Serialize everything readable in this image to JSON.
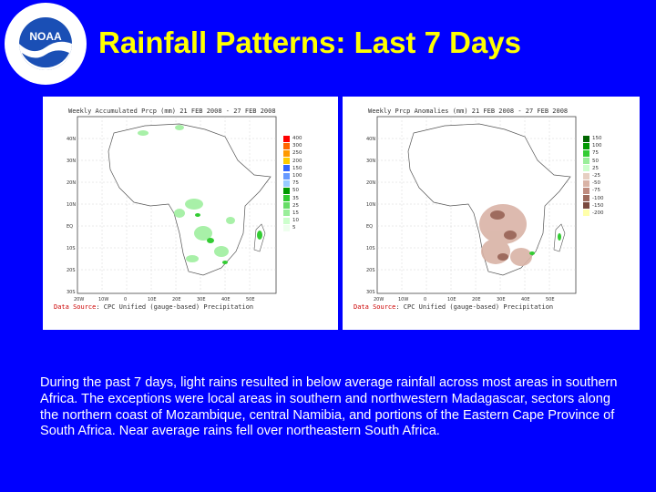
{
  "slide": {
    "title": "Rainfall Patterns: Last 7 Days",
    "description": "During the past 7 days, light rains resulted in below average rainfall across most areas in southern Africa.  The exceptions were local areas in southern and northwestern Madagascar, sectors along the northern coast of Mozambique, central Namibia, and portions of the Eastern Cape Province of South Africa.  Near average rains fell over northeastern South Africa.",
    "colors": {
      "background": "#0000ff",
      "title": "#ffff00",
      "text": "#ffffff"
    }
  },
  "logo": {
    "icon": "noaa-logo",
    "center_text": "NOAA",
    "ring_text": "NATIONAL OCEANIC AND ATMOSPHERIC ADMINISTRATION · U.S. DEPARTMENT OF COMMERCE"
  },
  "maps": [
    {
      "title": "Weekly Accumulated Prcp (mm)  21 FEB 2008 - 27 FEB 2008",
      "footer_source": "Data Source",
      "footer_text": ": CPC Unified (gauge-based) Precipitation",
      "legend": [
        {
          "label": "400",
          "color": "#ff0000"
        },
        {
          "label": "300",
          "color": "#ff6600"
        },
        {
          "label": "250",
          "color": "#ff9900"
        },
        {
          "label": "200",
          "color": "#ffcc00"
        },
        {
          "label": "150",
          "color": "#3366ff"
        },
        {
          "label": "100",
          "color": "#6699ff"
        },
        {
          "label": "75",
          "color": "#99ccff"
        },
        {
          "label": "50",
          "color": "#009900"
        },
        {
          "label": "35",
          "color": "#33cc33"
        },
        {
          "label": "25",
          "color": "#66dd66"
        },
        {
          "label": "15",
          "color": "#99ee99"
        },
        {
          "label": "10",
          "color": "#ccffcc"
        },
        {
          "label": "5",
          "color": "#eeffee"
        }
      ],
      "lat_labels": [
        "40N",
        "30N",
        "20N",
        "10N",
        "EQ",
        "10S",
        "20S",
        "30S",
        "40S"
      ],
      "lon_labels": [
        "20W",
        "10W",
        "0",
        "10E",
        "20E",
        "30E",
        "40E",
        "50E",
        "60E"
      ]
    },
    {
      "title": "Weekly Prcp Anomalies (mm)  21 FEB 2008 - 27 FEB 2008",
      "footer_source": "Data Source",
      "footer_text": ": CPC Unified (gauge-based) Precipitation",
      "legend": [
        {
          "label": "150",
          "color": "#006600"
        },
        {
          "label": "100",
          "color": "#009900"
        },
        {
          "label": "75",
          "color": "#33cc33"
        },
        {
          "label": "50",
          "color": "#99ee99"
        },
        {
          "label": "25",
          "color": "#ccffcc"
        },
        {
          "label": "-25",
          "color": "#e6cfc2"
        },
        {
          "label": "-50",
          "color": "#d9b3a6"
        },
        {
          "label": "-75",
          "color": "#bf8c80"
        },
        {
          "label": "-100",
          "color": "#9e6b5e"
        },
        {
          "label": "-150",
          "color": "#7a4a3f"
        },
        {
          "label": "-200",
          "color": "#ffffaa"
        }
      ],
      "lat_labels": [
        "40N",
        "30N",
        "20N",
        "10N",
        "EQ",
        "10S",
        "20S",
        "30S",
        "40S"
      ],
      "lon_labels": [
        "20W",
        "10W",
        "0",
        "10E",
        "20E",
        "30E",
        "40E",
        "50E",
        "60E"
      ]
    }
  ]
}
